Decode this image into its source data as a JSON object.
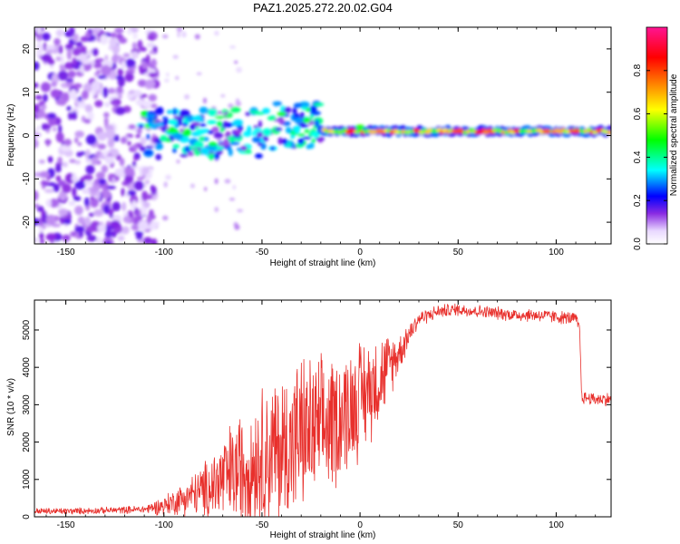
{
  "title": "PAZ1.2025.272.20.02.G04",
  "chart_data": [
    {
      "type": "heatmap",
      "title": "PAZ1.2025.272.20.02.G04",
      "xlabel": "Height of straight line (km)",
      "ylabel": "Frequency (Hz)",
      "xlim": [
        -166,
        128
      ],
      "ylim": [
        -25,
        25
      ],
      "xticks": [
        -150,
        -100,
        -50,
        0,
        50,
        100
      ],
      "yticks": [
        -20,
        -10,
        0,
        10,
        20
      ],
      "colorbar": {
        "label": "Normalized spectral amplitude",
        "range": [
          0,
          1
        ],
        "ticks": [
          0.0,
          0.2,
          0.4,
          0.6,
          0.8
        ],
        "tick_labels": [
          "0.0",
          "0.2",
          "0.4",
          "0.6",
          "0.8"
        ],
        "colors": [
          "#e8d8ff",
          "#8a2be2",
          "#0000ff",
          "#00ffff",
          "#00ff00",
          "#ffff00",
          "#ff8000",
          "#ff0000",
          "#ff1493"
        ]
      },
      "features": [
        {
          "name": "scattered noise blobs",
          "x_range": [
            -166,
            -100
          ],
          "y_range": [
            -25,
            25
          ],
          "amplitude": 0.15
        },
        {
          "name": "emerging signal",
          "x_range": [
            -112,
            -20
          ],
          "y_range": [
            -6,
            7
          ],
          "amplitude": 0.35
        },
        {
          "name": "steady signal line",
          "x_range": [
            -20,
            128
          ],
          "y_center": 1,
          "amplitude": 0.85
        }
      ]
    },
    {
      "type": "line",
      "xlabel": "Height of straight line (km)",
      "ylabel": "SNR (10 * v/v)",
      "xlim": [
        -166,
        128
      ],
      "ylim": [
        0,
        5800
      ],
      "xticks": [
        -150,
        -100,
        -50,
        0,
        50,
        100
      ],
      "yticks": [
        0,
        1000,
        2000,
        3000,
        4000,
        5000
      ],
      "series": [
        {
          "name": "SNR",
          "color": "#e8302c",
          "x": [
            -166,
            -150,
            -130,
            -110,
            -100,
            -90,
            -80,
            -70,
            -60,
            -50,
            -40,
            -30,
            -20,
            -10,
            0,
            10,
            20,
            25,
            30,
            40,
            50,
            60,
            70,
            80,
            90,
            100,
            110,
            112,
            113,
            120,
            128
          ],
          "y": [
            150,
            150,
            170,
            200,
            300,
            500,
            700,
            1000,
            1300,
            1600,
            1800,
            2200,
            2300,
            2700,
            3200,
            3700,
            4400,
            4900,
            5300,
            5500,
            5550,
            5500,
            5450,
            5400,
            5400,
            5350,
            5300,
            5000,
            3200,
            3150,
            3150
          ],
          "noise": [
            50,
            50,
            50,
            60,
            150,
            250,
            400,
            700,
            900,
            1100,
            1200,
            1200,
            1100,
            1000,
            900,
            700,
            300,
            200,
            120,
            100,
            100,
            100,
            100,
            100,
            100,
            100,
            100,
            100,
            100,
            100,
            100
          ]
        }
      ]
    }
  ]
}
